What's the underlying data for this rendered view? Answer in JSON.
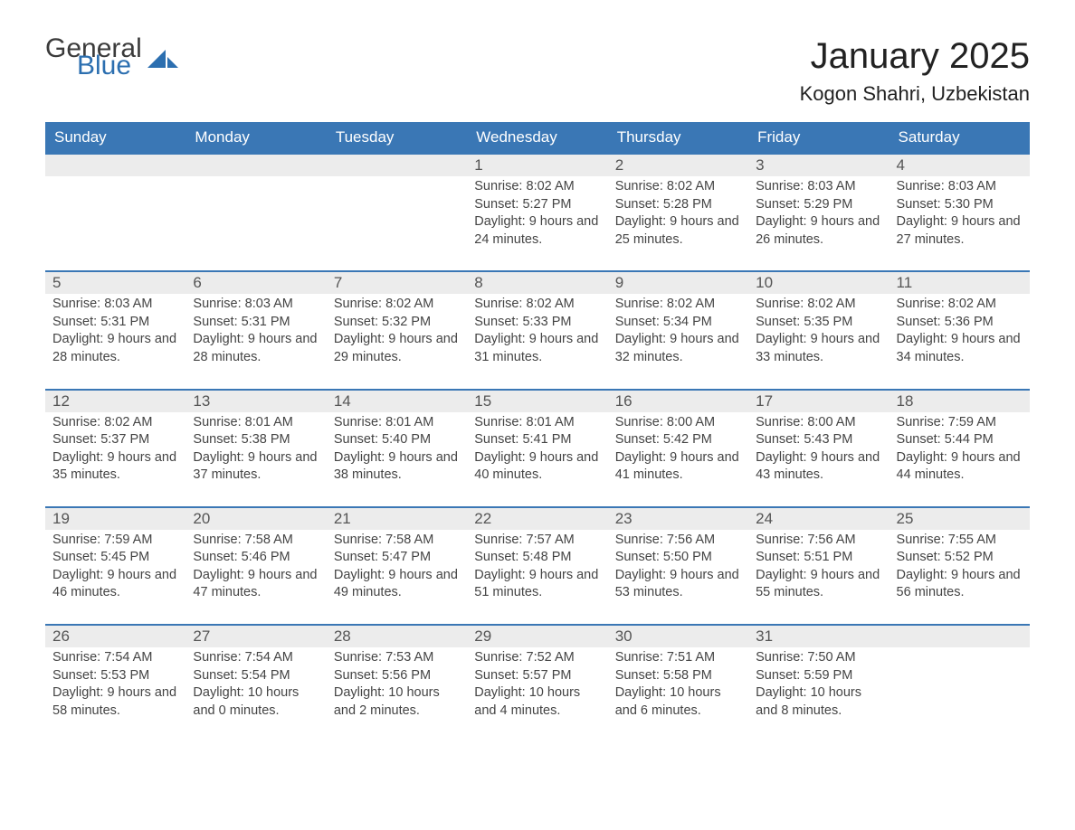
{
  "brand": {
    "word1": "General",
    "word2": "Blue",
    "accent_color": "#2c6fb0"
  },
  "title": "January 2025",
  "location": "Kogon Shahri, Uzbekistan",
  "colors": {
    "header_bg": "#3a77b5",
    "header_text": "#ffffff",
    "daynum_bg": "#ececec",
    "row_border": "#3a77b5",
    "body_text": "#444444"
  },
  "fonts": {
    "title_size_pt": 30,
    "header_size_pt": 13,
    "body_size_pt": 11
  },
  "day_headers": [
    "Sunday",
    "Monday",
    "Tuesday",
    "Wednesday",
    "Thursday",
    "Friday",
    "Saturday"
  ],
  "labels": {
    "sunrise": "Sunrise:",
    "sunset": "Sunset:",
    "daylight": "Daylight:"
  },
  "weeks": [
    [
      null,
      null,
      null,
      {
        "n": 1,
        "sunrise": "8:02 AM",
        "sunset": "5:27 PM",
        "daylight": "9 hours and 24 minutes."
      },
      {
        "n": 2,
        "sunrise": "8:02 AM",
        "sunset": "5:28 PM",
        "daylight": "9 hours and 25 minutes."
      },
      {
        "n": 3,
        "sunrise": "8:03 AM",
        "sunset": "5:29 PM",
        "daylight": "9 hours and 26 minutes."
      },
      {
        "n": 4,
        "sunrise": "8:03 AM",
        "sunset": "5:30 PM",
        "daylight": "9 hours and 27 minutes."
      }
    ],
    [
      {
        "n": 5,
        "sunrise": "8:03 AM",
        "sunset": "5:31 PM",
        "daylight": "9 hours and 28 minutes."
      },
      {
        "n": 6,
        "sunrise": "8:03 AM",
        "sunset": "5:31 PM",
        "daylight": "9 hours and 28 minutes."
      },
      {
        "n": 7,
        "sunrise": "8:02 AM",
        "sunset": "5:32 PM",
        "daylight": "9 hours and 29 minutes."
      },
      {
        "n": 8,
        "sunrise": "8:02 AM",
        "sunset": "5:33 PM",
        "daylight": "9 hours and 31 minutes."
      },
      {
        "n": 9,
        "sunrise": "8:02 AM",
        "sunset": "5:34 PM",
        "daylight": "9 hours and 32 minutes."
      },
      {
        "n": 10,
        "sunrise": "8:02 AM",
        "sunset": "5:35 PM",
        "daylight": "9 hours and 33 minutes."
      },
      {
        "n": 11,
        "sunrise": "8:02 AM",
        "sunset": "5:36 PM",
        "daylight": "9 hours and 34 minutes."
      }
    ],
    [
      {
        "n": 12,
        "sunrise": "8:02 AM",
        "sunset": "5:37 PM",
        "daylight": "9 hours and 35 minutes."
      },
      {
        "n": 13,
        "sunrise": "8:01 AM",
        "sunset": "5:38 PM",
        "daylight": "9 hours and 37 minutes."
      },
      {
        "n": 14,
        "sunrise": "8:01 AM",
        "sunset": "5:40 PM",
        "daylight": "9 hours and 38 minutes."
      },
      {
        "n": 15,
        "sunrise": "8:01 AM",
        "sunset": "5:41 PM",
        "daylight": "9 hours and 40 minutes."
      },
      {
        "n": 16,
        "sunrise": "8:00 AM",
        "sunset": "5:42 PM",
        "daylight": "9 hours and 41 minutes."
      },
      {
        "n": 17,
        "sunrise": "8:00 AM",
        "sunset": "5:43 PM",
        "daylight": "9 hours and 43 minutes."
      },
      {
        "n": 18,
        "sunrise": "7:59 AM",
        "sunset": "5:44 PM",
        "daylight": "9 hours and 44 minutes."
      }
    ],
    [
      {
        "n": 19,
        "sunrise": "7:59 AM",
        "sunset": "5:45 PM",
        "daylight": "9 hours and 46 minutes."
      },
      {
        "n": 20,
        "sunrise": "7:58 AM",
        "sunset": "5:46 PM",
        "daylight": "9 hours and 47 minutes."
      },
      {
        "n": 21,
        "sunrise": "7:58 AM",
        "sunset": "5:47 PM",
        "daylight": "9 hours and 49 minutes."
      },
      {
        "n": 22,
        "sunrise": "7:57 AM",
        "sunset": "5:48 PM",
        "daylight": "9 hours and 51 minutes."
      },
      {
        "n": 23,
        "sunrise": "7:56 AM",
        "sunset": "5:50 PM",
        "daylight": "9 hours and 53 minutes."
      },
      {
        "n": 24,
        "sunrise": "7:56 AM",
        "sunset": "5:51 PM",
        "daylight": "9 hours and 55 minutes."
      },
      {
        "n": 25,
        "sunrise": "7:55 AM",
        "sunset": "5:52 PM",
        "daylight": "9 hours and 56 minutes."
      }
    ],
    [
      {
        "n": 26,
        "sunrise": "7:54 AM",
        "sunset": "5:53 PM",
        "daylight": "9 hours and 58 minutes."
      },
      {
        "n": 27,
        "sunrise": "7:54 AM",
        "sunset": "5:54 PM",
        "daylight": "10 hours and 0 minutes."
      },
      {
        "n": 28,
        "sunrise": "7:53 AM",
        "sunset": "5:56 PM",
        "daylight": "10 hours and 2 minutes."
      },
      {
        "n": 29,
        "sunrise": "7:52 AM",
        "sunset": "5:57 PM",
        "daylight": "10 hours and 4 minutes."
      },
      {
        "n": 30,
        "sunrise": "7:51 AM",
        "sunset": "5:58 PM",
        "daylight": "10 hours and 6 minutes."
      },
      {
        "n": 31,
        "sunrise": "7:50 AM",
        "sunset": "5:59 PM",
        "daylight": "10 hours and 8 minutes."
      },
      null
    ]
  ]
}
